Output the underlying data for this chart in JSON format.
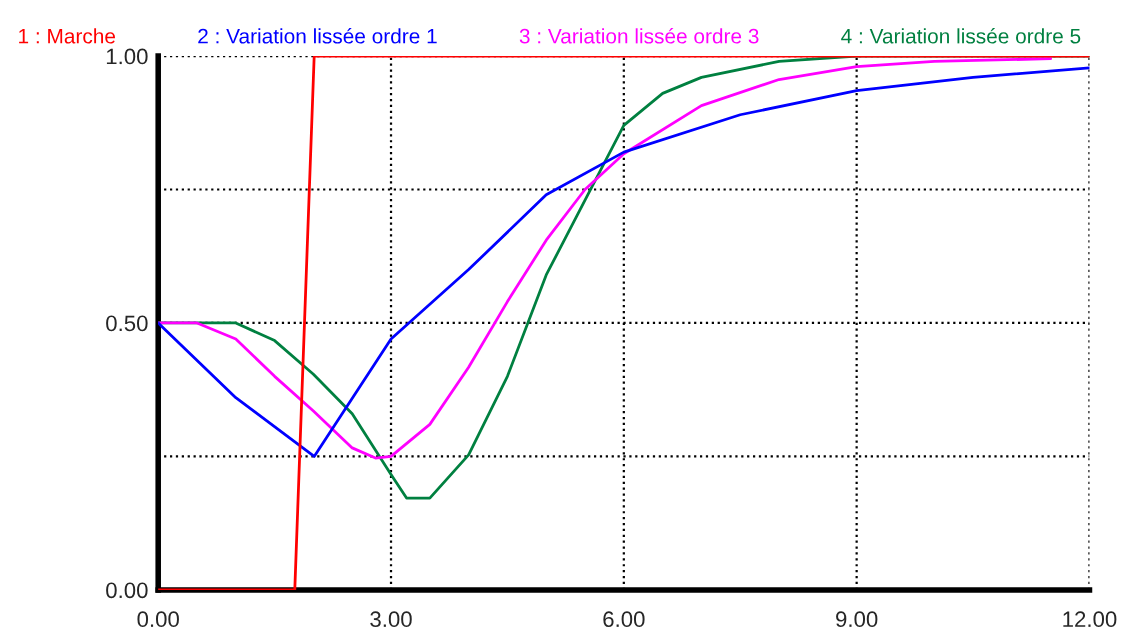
{
  "chart_data": {
    "type": "line",
    "legend": "top",
    "grid": true,
    "line_style": "solid",
    "marker": "none",
    "xlim": [
      0,
      12
    ],
    "xticks": [
      {
        "value": 0,
        "label": "0.00"
      },
      {
        "value": 3,
        "label": "3.00"
      },
      {
        "value": 6,
        "label": "6.00"
      },
      {
        "value": 9,
        "label": "9.00"
      },
      {
        "value": 12,
        "label": "12.00"
      }
    ],
    "ylim": [
      0,
      1
    ],
    "yticks": [
      {
        "value": 0,
        "label": "0.00"
      },
      {
        "value": 0.25,
        "label": null
      },
      {
        "value": 0.5,
        "label": "0.50"
      },
      {
        "value": 0.75,
        "label": null
      },
      {
        "value": 1,
        "label": "1.00"
      }
    ],
    "series": [
      {
        "name": "1 : Marche",
        "color": "#ff0000",
        "x": [
          0,
          1.76,
          2.01,
          12
        ],
        "values": [
          0,
          0,
          1,
          1
        ]
      },
      {
        "name": "2 : Variation lissée ordre 1",
        "color": "#0000ff",
        "x": [
          0,
          1,
          2.01,
          3,
          4,
          5,
          6,
          7.5,
          9,
          10.5,
          12
        ],
        "values": [
          0.5,
          0.36,
          0.25,
          0.47,
          0.6,
          0.74,
          0.82,
          0.89,
          0.935,
          0.96,
          0.978
        ]
      },
      {
        "name": "3 : Variation lissée ordre 3",
        "color": "#ff00ff",
        "x": [
          0,
          0.5,
          1,
          1.5,
          2,
          2.5,
          2.8,
          3,
          3.5,
          4,
          4.5,
          5,
          5.5,
          6,
          7,
          8,
          9,
          10,
          11.5
        ],
        "values": [
          0.5,
          0.5,
          0.47,
          0.4,
          0.335,
          0.266,
          0.247,
          0.25,
          0.31,
          0.417,
          0.54,
          0.655,
          0.75,
          0.817,
          0.907,
          0.956,
          0.98,
          0.99,
          0.995
        ]
      },
      {
        "name": "4 : Variation lissée ordre 5",
        "color": "#008040",
        "x": [
          0,
          1,
          1.5,
          2,
          2.5,
          3,
          3.2,
          3.5,
          4,
          4.5,
          5,
          5.5,
          6,
          6.5,
          7,
          8,
          9,
          12
        ],
        "values": [
          0.5,
          0.5,
          0.467,
          0.404,
          0.33,
          0.216,
          0.172,
          0.172,
          0.253,
          0.4,
          0.59,
          0.73,
          0.87,
          0.93,
          0.96,
          0.99,
          1,
          1
        ]
      }
    ]
  }
}
